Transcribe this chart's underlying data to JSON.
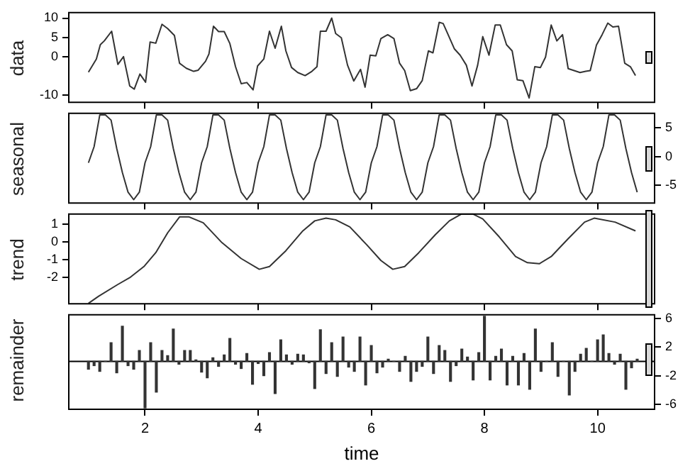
{
  "chart_data": [
    {
      "type": "line",
      "ylabel": "data",
      "color": "#333333",
      "tick_labels": "y",
      "xlim": [
        0.64,
        11.02
      ],
      "xticks": [
        2,
        4,
        6,
        8,
        10
      ],
      "ylim": [
        -12,
        11.6
      ],
      "yticks": [
        -10,
        0,
        5,
        10
      ],
      "x": [
        1.0,
        1.14,
        1.21,
        1.28,
        1.41,
        1.52,
        1.62,
        1.73,
        1.81,
        1.91,
        2.01,
        2.09,
        2.19,
        2.3,
        2.4,
        2.52,
        2.61,
        2.73,
        2.86,
        2.94,
        3.07,
        3.13,
        3.21,
        3.3,
        3.4,
        3.5,
        3.6,
        3.7,
        3.8,
        3.91,
        3.99,
        4.1,
        4.2,
        4.3,
        4.41,
        4.49,
        4.59,
        4.7,
        4.83,
        4.95,
        5.04,
        5.1,
        5.2,
        5.3,
        5.37,
        5.47,
        5.58,
        5.69,
        5.81,
        5.89,
        5.98,
        6.08,
        6.17,
        6.29,
        6.4,
        6.5,
        6.59,
        6.69,
        6.8,
        6.9,
        7.01,
        7.09,
        7.2,
        7.27,
        7.34,
        7.47,
        7.57,
        7.68,
        7.78,
        7.88,
        7.97,
        8.08,
        8.19,
        8.28,
        8.39,
        8.49,
        8.58,
        8.68,
        8.79,
        8.89,
        8.99,
        9.08,
        9.18,
        9.28,
        9.38,
        9.48,
        9.69,
        9.79,
        9.87,
        9.98,
        10.08,
        10.18,
        10.27,
        10.37,
        10.48,
        10.58,
        10.67
      ],
      "values": [
        -4.0,
        -0.6,
        3.1,
        4.1,
        6.6,
        -2.0,
        0,
        -7.6,
        -8.4,
        -4.5,
        -6.6,
        3.8,
        3.5,
        8.4,
        7.3,
        5.5,
        -1.7,
        -3.0,
        -3.8,
        -3.5,
        -1.2,
        0.7,
        7.9,
        6.5,
        6.5,
        3.4,
        -2.6,
        -7.0,
        -6.7,
        -8.6,
        -2.4,
        -0.6,
        6.6,
        2.2,
        7.9,
        1.5,
        -2.8,
        -4.1,
        -4.9,
        -3.8,
        -2.6,
        6.6,
        6.6,
        10.0,
        6.0,
        4.9,
        -2.2,
        -6.3,
        -3.3,
        -7.9,
        0.4,
        0.2,
        4.7,
        5.7,
        4.7,
        -1.7,
        -3.6,
        -8.8,
        -8.3,
        -6.2,
        1.5,
        1.0,
        8.9,
        8.6,
        6.3,
        2.0,
        0.4,
        -2.2,
        -7.6,
        -2.2,
        5.2,
        0.4,
        8.2,
        8.2,
        3.1,
        1.5,
        -6.0,
        -6.2,
        -10.7,
        -2.6,
        -2.8,
        -0.1,
        8.2,
        4.1,
        5.7,
        -3.1,
        -4.1,
        -3.8,
        -3.6,
        3.0,
        5.7,
        8.7,
        7.7,
        7.9,
        -1.7,
        -2.6,
        -4.9
      ]
    },
    {
      "type": "line",
      "ylabel": "seasonal",
      "color": "#333333",
      "tick_labels": "y",
      "xlim": [
        0.64,
        11.02
      ],
      "xticks": [
        2,
        4,
        6,
        8,
        10
      ],
      "ylim": [
        -8.2,
        7.6
      ],
      "yticks": [
        -5,
        0,
        5
      ],
      "x": [
        1.0,
        1.1,
        1.2,
        1.3,
        1.4,
        1.5,
        1.6,
        1.7,
        1.8,
        1.9,
        2.0,
        2.1,
        2.2,
        2.3,
        2.4,
        2.5,
        2.6,
        2.7,
        2.8,
        2.9,
        3.0,
        3.1,
        3.2,
        3.3,
        3.4,
        3.5,
        3.6,
        3.7,
        3.8,
        3.9,
        4.0,
        4.1,
        4.2,
        4.3,
        4.4,
        4.5,
        4.6,
        4.7,
        4.8,
        4.9,
        5.0,
        5.1,
        5.2,
        5.3,
        5.4,
        5.5,
        5.6,
        5.7,
        5.8,
        5.9,
        6.0,
        6.1,
        6.2,
        6.3,
        6.4,
        6.5,
        6.6,
        6.7,
        6.8,
        6.9,
        7.0,
        7.1,
        7.2,
        7.3,
        7.4,
        7.5,
        7.6,
        7.7,
        7.8,
        7.9,
        8.0,
        8.1,
        8.2,
        8.3,
        8.4,
        8.5,
        8.6,
        8.7,
        8.8,
        8.9,
        9.0,
        9.1,
        9.2,
        9.3,
        9.4,
        9.5,
        9.6,
        9.7,
        9.8,
        9.9,
        10.0,
        10.1,
        10.2,
        10.3,
        10.4,
        10.5,
        10.6,
        10.7
      ],
      "values": [
        -1.1,
        1.7,
        7.2,
        7.2,
        6.3,
        1.4,
        -2.8,
        -6.2,
        -7.5,
        -6.2,
        -1.1,
        1.7,
        7.2,
        7.2,
        6.3,
        1.4,
        -2.8,
        -6.2,
        -7.5,
        -6.2,
        -1.1,
        1.7,
        7.2,
        7.2,
        6.3,
        1.4,
        -2.8,
        -6.2,
        -7.5,
        -6.2,
        -1.1,
        1.7,
        7.2,
        7.2,
        6.3,
        1.4,
        -2.8,
        -6.2,
        -7.5,
        -6.2,
        -1.1,
        1.7,
        7.2,
        7.2,
        6.3,
        1.4,
        -2.8,
        -6.2,
        -7.5,
        -6.2,
        -1.1,
        1.7,
        7.2,
        7.2,
        6.3,
        1.4,
        -2.8,
        -6.2,
        -7.5,
        -6.2,
        -1.1,
        1.7,
        7.2,
        7.2,
        6.3,
        1.4,
        -2.8,
        -6.2,
        -7.5,
        -6.2,
        -1.1,
        1.7,
        7.2,
        7.2,
        6.3,
        1.4,
        -2.8,
        -6.2,
        -7.5,
        -6.2,
        -1.1,
        1.7,
        7.2,
        7.2,
        6.3,
        1.4,
        -2.8,
        -6.2,
        -7.5,
        -6.2,
        -1.1,
        1.7,
        7.2,
        7.2,
        6.3,
        1.4,
        -2.8,
        -6.2
      ]
    },
    {
      "type": "line",
      "ylabel": "trend",
      "color": "#333333",
      "tick_labels": "y",
      "xlim": [
        0.64,
        11.02
      ],
      "xticks": [
        2,
        4,
        6,
        8,
        10
      ],
      "ylim": [
        -3.5,
        1.6
      ],
      "yticks": [
        -2,
        -1,
        0,
        1
      ],
      "x": [
        1.0,
        1.18,
        1.52,
        1.73,
        1.98,
        2.19,
        2.4,
        2.61,
        2.78,
        3.03,
        3.36,
        3.7,
        4.02,
        4.2,
        4.49,
        4.79,
        5.0,
        5.2,
        5.37,
        5.62,
        5.92,
        6.17,
        6.38,
        6.59,
        6.84,
        7.13,
        7.38,
        7.59,
        7.8,
        7.97,
        8.26,
        8.55,
        8.76,
        8.97,
        9.18,
        9.48,
        9.77,
        9.94,
        10.31,
        10.67
      ],
      "values": [
        -3.44,
        -3.04,
        -2.38,
        -2.0,
        -1.38,
        -0.6,
        0.51,
        1.4,
        1.4,
        1.07,
        -0.04,
        -0.93,
        -1.53,
        -1.38,
        -0.49,
        0.62,
        1.18,
        1.33,
        1.24,
        0.84,
        -0.16,
        -1.04,
        -1.53,
        -1.38,
        -0.6,
        0.4,
        1.18,
        1.56,
        1.56,
        1.29,
        0.29,
        -0.82,
        -1.16,
        -1.22,
        -0.82,
        0.18,
        1.11,
        1.33,
        1.11,
        0.62
      ]
    },
    {
      "type": "bar",
      "ylabel": "remainder",
      "xlabel": "time",
      "color": "#333333",
      "xlim": [
        0.64,
        11.02
      ],
      "xticks": [
        2,
        4,
        6,
        8,
        10
      ],
      "ylim": [
        -6.8,
        6.6
      ],
      "yticks": [
        -6,
        -2,
        2,
        6
      ],
      "ref_lines": [
        {
          "axis": "y",
          "value": 0
        }
      ],
      "x": [
        1.0,
        1.1,
        1.2,
        1.3,
        1.4,
        1.5,
        1.6,
        1.7,
        1.8,
        1.9,
        2.0,
        2.1,
        2.2,
        2.3,
        2.4,
        2.5,
        2.6,
        2.7,
        2.8,
        2.9,
        3.0,
        3.1,
        3.2,
        3.3,
        3.4,
        3.5,
        3.6,
        3.7,
        3.8,
        3.9,
        4.0,
        4.1,
        4.2,
        4.3,
        4.4,
        4.5,
        4.6,
        4.7,
        4.8,
        4.9,
        5.0,
        5.1,
        5.2,
        5.3,
        5.4,
        5.5,
        5.6,
        5.7,
        5.8,
        5.9,
        6.0,
        6.1,
        6.2,
        6.3,
        6.4,
        6.5,
        6.6,
        6.7,
        6.8,
        6.9,
        7.0,
        7.1,
        7.2,
        7.3,
        7.4,
        7.5,
        7.6,
        7.7,
        7.8,
        7.9,
        8.0,
        8.1,
        8.2,
        8.3,
        8.4,
        8.5,
        8.6,
        8.7,
        8.8,
        8.9,
        9.0,
        9.1,
        9.2,
        9.3,
        9.4,
        9.5,
        9.6,
        9.7,
        9.8,
        9.9,
        10.0,
        10.1,
        10.2,
        10.3,
        10.4,
        10.5,
        10.6,
        10.7
      ],
      "values": [
        -1.1,
        -0.6,
        -1.4,
        0,
        2.6,
        -1.6,
        4.9,
        -0.6,
        -1.1,
        1.5,
        -6.5,
        2.6,
        -4.3,
        1.5,
        0.8,
        4.5,
        -0.4,
        1.5,
        1.5,
        0.2,
        -1.5,
        -2.3,
        0.5,
        -0.7,
        0.9,
        3.2,
        -0.4,
        -1.0,
        1.1,
        -3.2,
        -0.3,
        -2.0,
        1.2,
        -4.5,
        3.0,
        0.9,
        -0.4,
        1.0,
        0.9,
        -0.2,
        -3.8,
        4.4,
        -1.7,
        2.6,
        -2.1,
        3.4,
        -0.8,
        -1.4,
        3.4,
        -3.3,
        2.2,
        -1.6,
        -0.8,
        0.3,
        0,
        -1.4,
        0.7,
        -2.8,
        -1.4,
        -0.7,
        3.4,
        -1.7,
        2.2,
        1.5,
        -2.8,
        -0.6,
        1.7,
        0.6,
        -2.6,
        1.2,
        6.3,
        -2.6,
        0.7,
        1.7,
        -3.3,
        0.7,
        -3.3,
        1.1,
        -3.9,
        4.5,
        -1.4,
        0,
        2.6,
        -2.1,
        0,
        -4.7,
        -1.4,
        1.0,
        1.8,
        0,
        3.0,
        3.7,
        1.1,
        -0.4,
        1.0,
        -3.9,
        -0.9,
        0.3
      ]
    }
  ]
}
